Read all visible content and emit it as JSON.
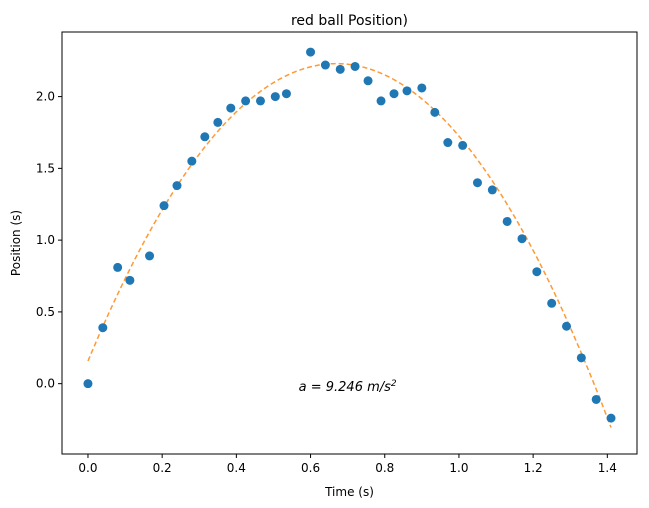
{
  "chart_data": {
    "type": "scatter",
    "title": "red ball Position)",
    "xlabel": "Time (s)",
    "ylabel": "Position (s)",
    "xlim": [
      -0.07,
      1.48
    ],
    "ylim": [
      -0.49,
      2.45
    ],
    "grid": false,
    "x_ticks": [
      0.0,
      0.2,
      0.4,
      0.6,
      0.8,
      1.0,
      1.2,
      1.4
    ],
    "x_tick_labels": [
      "0.0",
      "0.2",
      "0.4",
      "0.6",
      "0.8",
      "1.0",
      "1.2",
      "1.4"
    ],
    "y_ticks": [
      0.0,
      0.5,
      1.0,
      1.5,
      2.0
    ],
    "y_tick_labels": [
      "0.0",
      "0.5",
      "1.0",
      "1.5",
      "2.0"
    ],
    "annotation": {
      "prefix": "a = 9.246 m/s",
      "superscript": "2",
      "x": 0.7,
      "y": -0.05
    },
    "series": [
      {
        "kind": "points",
        "color": "#1f77b4",
        "x": [
          0.0,
          0.04,
          0.08,
          0.113,
          0.166,
          0.205,
          0.24,
          0.28,
          0.315,
          0.35,
          0.385,
          0.425,
          0.465,
          0.505,
          0.535,
          0.6,
          0.64,
          0.68,
          0.72,
          0.755,
          0.79,
          0.825,
          0.86,
          0.9,
          0.935,
          0.97,
          1.01,
          1.05,
          1.09,
          1.13,
          1.17,
          1.21,
          1.25,
          1.29,
          1.33,
          1.37,
          1.41
        ],
        "y": [
          0.0,
          0.39,
          0.81,
          0.72,
          0.89,
          1.24,
          1.38,
          1.55,
          1.72,
          1.82,
          1.92,
          1.97,
          1.97,
          2.0,
          2.02,
          2.31,
          2.22,
          2.19,
          2.21,
          2.11,
          1.97,
          2.02,
          2.04,
          2.06,
          1.89,
          1.68,
          1.66,
          1.4,
          1.35,
          1.13,
          1.01,
          0.78,
          0.56,
          0.4,
          0.18,
          -0.11,
          -0.24
        ]
      },
      {
        "kind": "fit",
        "color": "#ff9933",
        "style": "dashed",
        "fit": {
          "a": -4.623,
          "b": 6.19,
          "c": 0.1578
        },
        "x_range": [
          0.0,
          1.41
        ]
      }
    ]
  }
}
